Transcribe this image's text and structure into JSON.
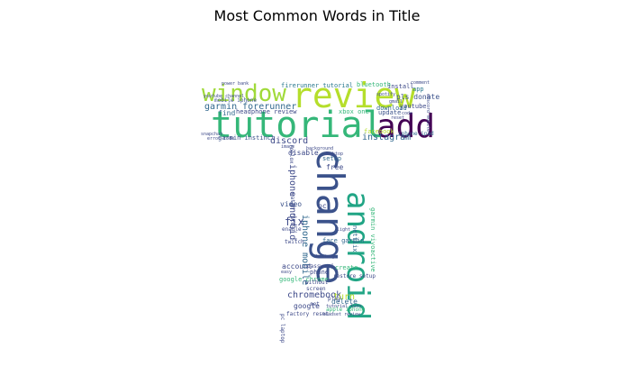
{
  "chart_data": {
    "type": "wordcloud",
    "title": "Most Common Words in Title",
    "mask_shape": "letter-T",
    "colormap": "viridis",
    "words": [
      {
        "text": "review",
        "weight": 1.0,
        "color": "#b5de2b"
      },
      {
        "text": "tutorial",
        "weight": 1.0,
        "color": "#35b779"
      },
      {
        "text": "add",
        "weight": 0.85,
        "color": "#440154"
      },
      {
        "text": "window",
        "weight": 0.62,
        "color": "#a0da39"
      },
      {
        "text": "change",
        "weight": 0.95,
        "color": "#3b528b"
      },
      {
        "text": "android",
        "weight": 0.92,
        "color": "#21a585"
      },
      {
        "text": "garmin forerunner",
        "weight": 0.2,
        "color": "#31688e"
      },
      {
        "text": "headphone review",
        "weight": 0.14,
        "color": "#3e4a89"
      },
      {
        "text": "firerunner tutorial",
        "weight": 0.12,
        "color": "#2a788e"
      },
      {
        "text": "bluetooth",
        "weight": 0.1,
        "color": "#35b779"
      },
      {
        "text": "install",
        "weight": 0.1,
        "color": "#3e4a89"
      },
      {
        "text": "app",
        "weight": 0.1,
        "color": "#2a788e"
      },
      {
        "text": "pls donate",
        "weight": 0.12,
        "color": "#3b528b"
      },
      {
        "text": "youtube",
        "weight": 0.1,
        "color": "#3e4a89"
      },
      {
        "text": "download",
        "weight": 0.11,
        "color": "#31688e"
      },
      {
        "text": "update",
        "weight": 0.11,
        "color": "#3b528b"
      },
      {
        "text": "find",
        "weight": 0.11,
        "color": "#31688e"
      },
      {
        "text": "garmin instinct",
        "weight": 0.11,
        "color": "#3b528b"
      },
      {
        "text": "discord",
        "weight": 0.14,
        "color": "#3e4a89"
      },
      {
        "text": "instagram",
        "weight": 0.14,
        "color": "#31688e"
      },
      {
        "text": "mobile iphone",
        "weight": 0.09,
        "color": "#3b528b"
      },
      {
        "text": "iphone android",
        "weight": 0.13,
        "color": "#3e4a89"
      },
      {
        "text": "disable",
        "weight": 0.12,
        "color": "#3e4a89"
      },
      {
        "text": "setup",
        "weight": 0.11,
        "color": "#31688e"
      },
      {
        "text": "free",
        "weight": 0.11,
        "color": "#3e4a89"
      },
      {
        "text": "iphone mobile",
        "weight": 0.13,
        "color": "#31688e"
      },
      {
        "text": "garmin vivoactive",
        "weight": 0.11,
        "color": "#35b779"
      },
      {
        "text": "netflix",
        "weight": 0.11,
        "color": "#31688e"
      },
      {
        "text": "fix",
        "weight": 0.16,
        "color": "#3e4a89"
      },
      {
        "text": "video",
        "weight": 0.11,
        "color": "#3b528b"
      },
      {
        "text": "face garmin",
        "weight": 0.09,
        "color": "#31688e"
      },
      {
        "text": "account",
        "weight": 0.1,
        "color": "#3e4a89"
      },
      {
        "text": "password",
        "weight": 0.08,
        "color": "#3e4a89"
      },
      {
        "text": "create",
        "weight": 0.08,
        "color": "#35b779"
      },
      {
        "text": "phone",
        "weight": 0.09,
        "color": "#3e4a89"
      },
      {
        "text": "google chrome",
        "weight": 0.1,
        "color": "#35b779"
      },
      {
        "text": "chromebook",
        "weight": 0.13,
        "color": "#3e4a89"
      },
      {
        "text": "turn",
        "weight": 0.13,
        "color": "#b5de2b"
      },
      {
        "text": "delete",
        "weight": 0.11,
        "color": "#31688e"
      },
      {
        "text": "google",
        "weight": 0.1,
        "color": "#3e4a89"
      },
      {
        "text": "pc laptop",
        "weight": 0.09,
        "color": "#3e4a89"
      },
      {
        "text": "factory reset",
        "weight": 0.08,
        "color": "#3e4a89"
      },
      {
        "text": "xbox one",
        "weight": 0.09,
        "color": "#35b779"
      },
      {
        "text": "apple iphone",
        "weight": 0.08,
        "color": "#35b779"
      },
      {
        "text": "facebook",
        "weight": 0.08,
        "color": "#b5de2b"
      },
      {
        "text": "iphone ipad",
        "weight": 0.07,
        "color": "#31688e"
      },
      {
        "text": "power bank",
        "weight": 0.06,
        "color": "#3e4a89"
      },
      {
        "text": "snapchat",
        "weight": 0.06,
        "color": "#3e4a89"
      },
      {
        "text": "error code",
        "weight": 0.06,
        "color": "#3e4a89"
      },
      {
        "text": "watch face",
        "weight": 0.07,
        "color": "#3e4a89"
      },
      {
        "text": "roblox",
        "weight": 0.07,
        "color": "#3e4a89"
      },
      {
        "text": "play",
        "weight": 0.07,
        "color": "#3e4a89"
      },
      {
        "text": "screen",
        "weight": 0.08,
        "color": "#3e4a89"
      },
      {
        "text": "enable",
        "weight": 0.07,
        "color": "#3e4a89"
      },
      {
        "text": "twitch",
        "weight": 0.07,
        "color": "#3e4a89"
      },
      {
        "text": "light",
        "weight": 0.06,
        "color": "#3e4a89"
      },
      {
        "text": "history",
        "weight": 0.06,
        "color": "#3e4a89"
      },
      {
        "text": "background",
        "weight": 0.06,
        "color": "#3e4a89"
      },
      {
        "text": "desktop",
        "weight": 0.06,
        "color": "#3e4a89"
      },
      {
        "text": "image",
        "weight": 0.06,
        "color": "#3e4a89"
      },
      {
        "text": "without",
        "weight": 0.07,
        "color": "#3e4a89"
      },
      {
        "text": "restore setup",
        "weight": 0.07,
        "color": "#3e4a89"
      },
      {
        "text": "tutorial turn",
        "weight": 0.06,
        "color": "#3e4a89"
      },
      {
        "text": "headset review",
        "weight": 0.06,
        "color": "#3e4a89"
      },
      {
        "text": "youtube channel",
        "weight": 0.06,
        "color": "#3e4a89"
      },
      {
        "text": "spotify",
        "weight": 0.06,
        "color": "#3e4a89"
      },
      {
        "text": "discord mobile",
        "weight": 0.06,
        "color": "#3e4a89"
      },
      {
        "text": "gmail",
        "weight": 0.06,
        "color": "#3e4a89"
      },
      {
        "text": "comment",
        "weight": 0.05,
        "color": "#3e4a89"
      },
      {
        "text": "reset",
        "weight": 0.06,
        "color": "#3e4a89"
      },
      {
        "text": "code",
        "weight": 0.06,
        "color": "#3e4a89"
      },
      {
        "text": "easy",
        "weight": 0.06,
        "color": "#3e4a89"
      },
      {
        "text": "pc",
        "weight": 0.08,
        "color": "#3e4a89"
      },
      {
        "text": "set",
        "weight": 0.07,
        "color": "#3e4a89"
      }
    ]
  }
}
